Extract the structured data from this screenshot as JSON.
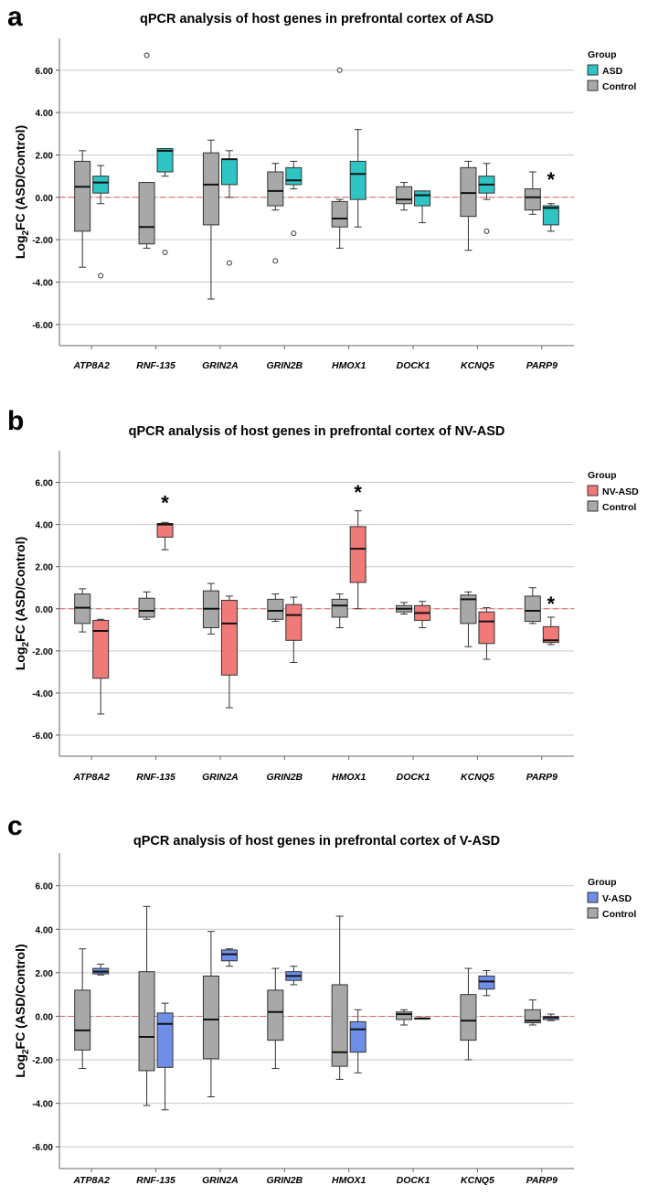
{
  "ylabel_prefix": "Log",
  "ylabel_sub": "2",
  "ylabel_suffix": "FC (ASD/Control)",
  "legend_title": "Group",
  "chart_data": [
    {
      "type": "boxplot",
      "panel_letter": "a",
      "title": "qPCR analysis of host genes in prefrontal cortex of ASD",
      "categories": [
        "ATP8A2",
        "RNF-135",
        "GRIN2A",
        "GRIN2B",
        "HMOX1",
        "DOCK1",
        "KCNQ5",
        "PARP9"
      ],
      "ylim": [
        -7,
        7.5
      ],
      "yticks": [
        -6,
        -4,
        -2,
        0,
        2,
        4,
        6
      ],
      "ytick_labels": [
        "-6.00",
        "-4.00",
        "-2.00",
        "0.00",
        "2.00",
        "4.00",
        "6.00"
      ],
      "reference_line": 0,
      "series": [
        {
          "name": "Control",
          "color": "#a8a8a8",
          "boxes": [
            {
              "min": -3.3,
              "q1": -1.6,
              "median": 0.5,
              "q3": 1.7,
              "max": 2.2,
              "outliers": []
            },
            {
              "min": -2.4,
              "q1": -2.2,
              "median": -1.4,
              "q3": 0.7,
              "max": 0.7,
              "outliers": [
                6.7
              ]
            },
            {
              "min": -4.8,
              "q1": -1.3,
              "median": 0.6,
              "q3": 2.1,
              "max": 2.7,
              "outliers": []
            },
            {
              "min": -0.6,
              "q1": -0.4,
              "median": 0.3,
              "q3": 1.2,
              "max": 1.6,
              "outliers": [
                -3.0
              ]
            },
            {
              "min": -2.4,
              "q1": -1.4,
              "median": -1.0,
              "q3": -0.2,
              "max": -0.1,
              "outliers": [
                6.0
              ]
            },
            {
              "min": -0.6,
              "q1": -0.3,
              "median": -0.1,
              "q3": 0.5,
              "max": 0.7,
              "outliers": []
            },
            {
              "min": -2.5,
              "q1": -0.9,
              "median": 0.2,
              "q3": 1.4,
              "max": 1.7,
              "outliers": []
            },
            {
              "min": -0.8,
              "q1": -0.6,
              "median": 0.0,
              "q3": 0.4,
              "max": 1.2,
              "outliers": []
            }
          ]
        },
        {
          "name": "ASD",
          "color": "#2ec4c4",
          "boxes": [
            {
              "min": -0.3,
              "q1": 0.2,
              "median": 0.7,
              "q3": 1.0,
              "max": 1.5,
              "outliers": [
                -3.7
              ]
            },
            {
              "min": 1.0,
              "q1": 1.2,
              "median": 2.2,
              "q3": 2.3,
              "max": 2.3,
              "outliers": [
                -2.6
              ]
            },
            {
              "min": 0.0,
              "q1": 0.6,
              "median": 1.8,
              "q3": 1.8,
              "max": 2.2,
              "outliers": [
                -3.1
              ]
            },
            {
              "min": 0.4,
              "q1": 0.6,
              "median": 0.8,
              "q3": 1.4,
              "max": 1.7,
              "outliers": [
                -1.7
              ]
            },
            {
              "min": -1.4,
              "q1": -0.1,
              "median": 1.1,
              "q3": 1.7,
              "max": 3.2,
              "outliers": []
            },
            {
              "min": -1.2,
              "q1": -0.4,
              "median": 0.1,
              "q3": 0.3,
              "max": 0.3,
              "outliers": []
            },
            {
              "min": -0.1,
              "q1": 0.2,
              "median": 0.6,
              "q3": 1.0,
              "max": 1.6,
              "outliers": [
                -1.6
              ]
            },
            {
              "min": -1.6,
              "q1": -1.3,
              "median": -0.5,
              "q3": -0.4,
              "max": -0.3,
              "outliers": []
            }
          ]
        }
      ],
      "annotations": [
        {
          "text": "*",
          "category_index": 7,
          "series_index": 1,
          "y": 0.9
        }
      ]
    },
    {
      "type": "boxplot",
      "panel_letter": "b",
      "title": "qPCR analysis of host genes in prefrontal cortex of NV-ASD",
      "categories": [
        "ATP8A2",
        "RNF-135",
        "GRIN2A",
        "GRIN2B",
        "HMOX1",
        "DOCK1",
        "KCNQ5",
        "PARP9"
      ],
      "ylim": [
        -7,
        7.5
      ],
      "yticks": [
        -6,
        -4,
        -2,
        0,
        2,
        4,
        6
      ],
      "ytick_labels": [
        "-6.00",
        "-4.00",
        "-2.00",
        "0.00",
        "2.00",
        "4.00",
        "6.00"
      ],
      "reference_line": 0,
      "series": [
        {
          "name": "Control",
          "color": "#a8a8a8",
          "boxes": [
            {
              "min": -1.1,
              "q1": -0.7,
              "median": 0.05,
              "q3": 0.7,
              "max": 0.95,
              "outliers": []
            },
            {
              "min": -0.5,
              "q1": -0.4,
              "median": -0.1,
              "q3": 0.5,
              "max": 0.8,
              "outliers": []
            },
            {
              "min": -1.2,
              "q1": -0.9,
              "median": 0.0,
              "q3": 0.85,
              "max": 1.2,
              "outliers": []
            },
            {
              "min": -0.6,
              "q1": -0.5,
              "median": -0.1,
              "q3": 0.45,
              "max": 0.7,
              "outliers": []
            },
            {
              "min": -0.9,
              "q1": -0.4,
              "median": 0.15,
              "q3": 0.45,
              "max": 0.7,
              "outliers": []
            },
            {
              "min": -0.25,
              "q1": -0.15,
              "median": 0.0,
              "q3": 0.15,
              "max": 0.3,
              "outliers": []
            },
            {
              "min": -1.8,
              "q1": -0.7,
              "median": 0.45,
              "q3": 0.65,
              "max": 0.8,
              "outliers": []
            },
            {
              "min": -0.7,
              "q1": -0.6,
              "median": -0.1,
              "q3": 0.6,
              "max": 1.0,
              "outliers": []
            }
          ]
        },
        {
          "name": "NV-ASD",
          "color": "#f07a78",
          "boxes": [
            {
              "min": -5.0,
              "q1": -3.3,
              "median": -1.05,
              "q3": -0.55,
              "max": -0.5,
              "outliers": []
            },
            {
              "min": 2.8,
              "q1": 3.4,
              "median": 4.0,
              "q3": 4.05,
              "max": 4.1,
              "outliers": []
            },
            {
              "min": -4.7,
              "q1": -3.15,
              "median": -0.7,
              "q3": 0.4,
              "max": 0.6,
              "outliers": []
            },
            {
              "min": -2.55,
              "q1": -1.5,
              "median": -0.3,
              "q3": 0.2,
              "max": 0.55,
              "outliers": []
            },
            {
              "min": 0.0,
              "q1": 1.25,
              "median": 2.85,
              "q3": 3.9,
              "max": 4.65,
              "outliers": []
            },
            {
              "min": -0.9,
              "q1": -0.55,
              "median": -0.2,
              "q3": 0.15,
              "max": 0.35,
              "outliers": []
            },
            {
              "min": -2.4,
              "q1": -1.65,
              "median": -0.6,
              "q3": -0.15,
              "max": 0.05,
              "outliers": []
            },
            {
              "min": -1.7,
              "q1": -1.6,
              "median": -1.5,
              "q3": -0.85,
              "max": -0.4,
              "outliers": []
            }
          ]
        }
      ],
      "annotations": [
        {
          "text": "*",
          "category_index": 1,
          "series_index": 1,
          "y": 5.1
        },
        {
          "text": "*",
          "category_index": 4,
          "series_index": 1,
          "y": 5.6
        },
        {
          "text": "*",
          "category_index": 7,
          "series_index": 1,
          "y": 0.3
        }
      ]
    },
    {
      "type": "boxplot",
      "panel_letter": "c",
      "title": "qPCR analysis of host genes in prefrontal cortex of V-ASD",
      "categories": [
        "ATP8A2",
        "RNF-135",
        "GRIN2A",
        "GRIN2B",
        "HMOX1",
        "DOCK1",
        "KCNQ5",
        "PARP9"
      ],
      "ylim": [
        -7,
        7.5
      ],
      "yticks": [
        -6,
        -4,
        -2,
        0,
        2,
        4,
        6
      ],
      "ytick_labels": [
        "-6.00",
        "-4.00",
        "-2.00",
        "0.00",
        "2.00",
        "4.00",
        "6.00"
      ],
      "reference_line": 0,
      "series": [
        {
          "name": "Control",
          "color": "#a8a8a8",
          "boxes": [
            {
              "min": -2.4,
              "q1": -1.55,
              "median": -0.65,
              "q3": 1.2,
              "max": 3.1,
              "outliers": []
            },
            {
              "min": -4.1,
              "q1": -2.5,
              "median": -0.95,
              "q3": 2.05,
              "max": 5.05,
              "outliers": []
            },
            {
              "min": -3.7,
              "q1": -1.95,
              "median": -0.15,
              "q3": 1.85,
              "max": 3.9,
              "outliers": []
            },
            {
              "min": -2.4,
              "q1": -1.1,
              "median": 0.2,
              "q3": 1.2,
              "max": 2.2,
              "outliers": []
            },
            {
              "min": -2.9,
              "q1": -2.3,
              "median": -1.65,
              "q3": 1.45,
              "max": 4.6,
              "outliers": []
            },
            {
              "min": -0.4,
              "q1": -0.15,
              "median": 0.1,
              "q3": 0.2,
              "max": 0.3,
              "outliers": []
            },
            {
              "min": -2.0,
              "q1": -1.1,
              "median": -0.2,
              "q3": 1.0,
              "max": 2.2,
              "outliers": []
            },
            {
              "min": -0.4,
              "q1": -0.3,
              "median": -0.2,
              "q3": 0.3,
              "max": 0.75,
              "outliers": []
            }
          ]
        },
        {
          "name": "V-ASD",
          "color": "#6f8ee8",
          "boxes": [
            {
              "min": 1.9,
              "q1": 1.95,
              "median": 2.05,
              "q3": 2.2,
              "max": 2.4,
              "outliers": []
            },
            {
              "min": -4.3,
              "q1": -2.35,
              "median": -0.35,
              "q3": 0.15,
              "max": 0.6,
              "outliers": []
            },
            {
              "min": 2.3,
              "q1": 2.55,
              "median": 2.85,
              "q3": 3.05,
              "max": 3.1,
              "outliers": []
            },
            {
              "min": 1.45,
              "q1": 1.65,
              "median": 1.85,
              "q3": 2.05,
              "max": 2.3,
              "outliers": []
            },
            {
              "min": -2.6,
              "q1": -1.65,
              "median": -0.6,
              "q3": -0.25,
              "max": 0.3,
              "outliers": []
            },
            {
              "min": -0.13,
              "q1": -0.12,
              "median": -0.1,
              "q3": -0.08,
              "max": -0.07,
              "outliers": []
            },
            {
              "min": 0.95,
              "q1": 1.25,
              "median": 1.6,
              "q3": 1.85,
              "max": 2.1,
              "outliers": []
            },
            {
              "min": -0.2,
              "q1": -0.15,
              "median": -0.05,
              "q3": -0.02,
              "max": 0.1,
              "outliers": []
            }
          ]
        }
      ],
      "annotations": []
    }
  ]
}
